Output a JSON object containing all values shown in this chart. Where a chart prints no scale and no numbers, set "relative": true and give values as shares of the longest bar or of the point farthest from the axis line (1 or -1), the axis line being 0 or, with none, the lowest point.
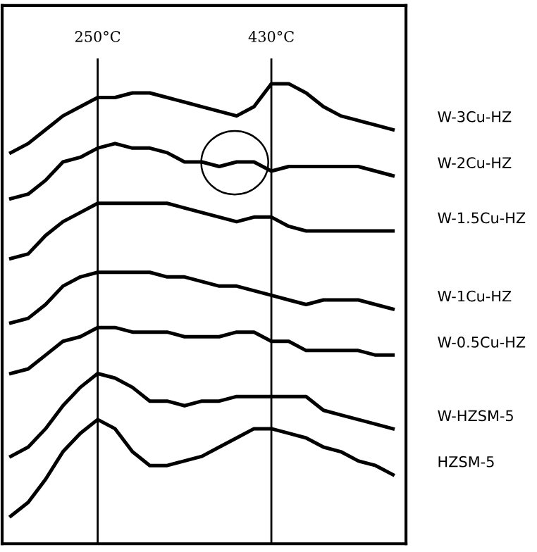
{
  "chart_data": {
    "type": "line",
    "relative": true,
    "grid": false,
    "legend": false,
    "line_style": "solid",
    "categories": [
      null,
      null,
      null,
      null,
      null,
      null,
      null,
      null,
      null,
      null,
      null,
      null,
      null,
      null,
      null,
      null,
      null,
      null,
      null,
      null,
      null,
      null,
      null
    ],
    "annotations": [
      "250°C",
      "430°C"
    ],
    "series": [
      {
        "name": "W-3Cu-HZ",
        "color": "#000000",
        "values": [
          0.85,
          0.87,
          0.9,
          0.93,
          0.95,
          0.97,
          0.97,
          0.98,
          0.98,
          0.97,
          0.96,
          0.95,
          0.94,
          0.93,
          0.95,
          1.0,
          1.0,
          0.98,
          0.95,
          0.93,
          0.92,
          0.91,
          0.9
        ]
      },
      {
        "name": "W-2Cu-HZ",
        "color": "#000000",
        "values": [
          0.75,
          0.76,
          0.79,
          0.83,
          0.84,
          0.86,
          0.87,
          0.86,
          0.86,
          0.85,
          0.83,
          0.83,
          0.82,
          0.83,
          0.83,
          0.81,
          0.82,
          0.82,
          0.82,
          0.82,
          0.82,
          0.81,
          0.8
        ]
      },
      {
        "name": "W-1.5Cu-HZ",
        "color": "#000000",
        "values": [
          0.62,
          0.63,
          0.67,
          0.7,
          0.72,
          0.74,
          0.74,
          0.74,
          0.74,
          0.74,
          0.73,
          0.72,
          0.71,
          0.7,
          0.71,
          0.71,
          0.69,
          0.68,
          0.68,
          0.68,
          0.68,
          0.68,
          0.68
        ]
      },
      {
        "name": "W-1Cu-HZ",
        "color": "#000000",
        "values": [
          0.48,
          0.49,
          0.52,
          0.56,
          0.58,
          0.59,
          0.59,
          0.59,
          0.59,
          0.58,
          0.58,
          0.57,
          0.56,
          0.56,
          0.55,
          0.54,
          0.53,
          0.52,
          0.53,
          0.53,
          0.53,
          0.52,
          0.51
        ]
      },
      {
        "name": "W-0.5Cu-HZ",
        "color": "#000000",
        "values": [
          0.37,
          0.38,
          0.41,
          0.44,
          0.45,
          0.47,
          0.47,
          0.46,
          0.46,
          0.46,
          0.45,
          0.45,
          0.45,
          0.46,
          0.46,
          0.44,
          0.44,
          0.42,
          0.42,
          0.42,
          0.42,
          0.41,
          0.41
        ]
      },
      {
        "name": "W-HZSM-5",
        "color": "#000000",
        "values": [
          0.19,
          0.21,
          0.25,
          0.3,
          0.34,
          0.37,
          0.36,
          0.34,
          0.31,
          0.31,
          0.3,
          0.31,
          0.31,
          0.32,
          0.32,
          0.32,
          0.32,
          0.32,
          0.29,
          0.28,
          0.27,
          0.26,
          0.25
        ]
      },
      {
        "name": "HZSM-5",
        "color": "#000000",
        "values": [
          0.06,
          0.09,
          0.14,
          0.2,
          0.24,
          0.27,
          0.25,
          0.2,
          0.17,
          0.17,
          0.18,
          0.19,
          0.21,
          0.23,
          0.25,
          0.25,
          0.24,
          0.23,
          0.21,
          0.2,
          0.18,
          0.17,
          0.15
        ]
      }
    ]
  }
}
